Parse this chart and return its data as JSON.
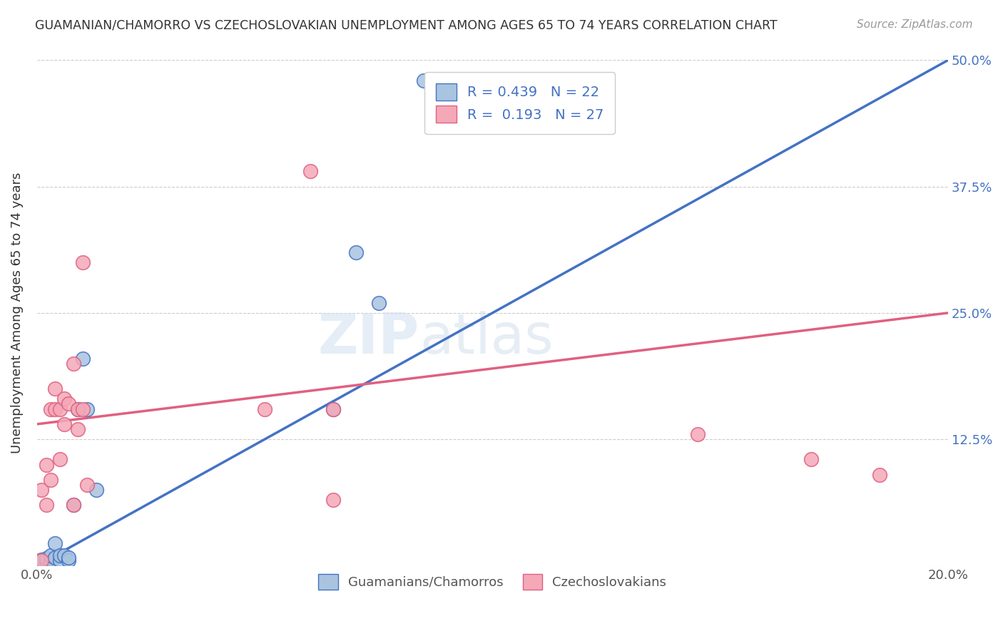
{
  "title": "GUAMANIAN/CHAMORRO VS CZECHOSLOVAKIAN UNEMPLOYMENT AMONG AGES 65 TO 74 YEARS CORRELATION CHART",
  "source": "Source: ZipAtlas.com",
  "ylabel": "Unemployment Among Ages 65 to 74 years",
  "xlim": [
    0.0,
    0.2
  ],
  "ylim": [
    0.0,
    0.5
  ],
  "xticks": [
    0.0,
    0.04,
    0.08,
    0.12,
    0.16,
    0.2
  ],
  "xticklabels": [
    "0.0%",
    "",
    "",
    "",
    "",
    "20.0%"
  ],
  "yticks": [
    0.0,
    0.125,
    0.25,
    0.375,
    0.5
  ],
  "yticklabels": [
    "",
    "12.5%",
    "25.0%",
    "37.5%",
    "50.0%"
  ],
  "blue_R": 0.439,
  "blue_N": 22,
  "pink_R": 0.193,
  "pink_N": 27,
  "blue_label": "Guamanians/Chamorros",
  "pink_label": "Czechoslovakians",
  "blue_color": "#a8c4e0",
  "pink_color": "#f4a8b8",
  "blue_line_color": "#4472c4",
  "pink_line_color": "#e06080",
  "ref_line_color": "#b0b8c8",
  "watermark_zip": "ZIP",
  "watermark_atlas": "atlas",
  "blue_x": [
    0.001,
    0.001,
    0.002,
    0.002,
    0.003,
    0.003,
    0.004,
    0.004,
    0.005,
    0.005,
    0.006,
    0.007,
    0.007,
    0.008,
    0.009,
    0.01,
    0.011,
    0.013,
    0.065,
    0.07,
    0.075,
    0.085
  ],
  "blue_y": [
    0.003,
    0.006,
    0.004,
    0.007,
    0.004,
    0.01,
    0.008,
    0.022,
    0.005,
    0.01,
    0.01,
    0.005,
    0.008,
    0.06,
    0.155,
    0.205,
    0.155,
    0.075,
    0.155,
    0.31,
    0.26,
    0.48
  ],
  "pink_x": [
    0.001,
    0.001,
    0.002,
    0.002,
    0.003,
    0.003,
    0.004,
    0.004,
    0.005,
    0.005,
    0.006,
    0.006,
    0.007,
    0.008,
    0.008,
    0.009,
    0.009,
    0.01,
    0.01,
    0.011,
    0.05,
    0.06,
    0.065,
    0.065,
    0.145,
    0.17,
    0.185
  ],
  "pink_y": [
    0.005,
    0.075,
    0.06,
    0.1,
    0.085,
    0.155,
    0.155,
    0.175,
    0.105,
    0.155,
    0.14,
    0.165,
    0.16,
    0.06,
    0.2,
    0.135,
    0.155,
    0.3,
    0.155,
    0.08,
    0.155,
    0.39,
    0.155,
    0.065,
    0.13,
    0.105,
    0.09
  ],
  "blue_line_x0": 0.0,
  "blue_line_y0": 0.0,
  "blue_line_x1": 0.2,
  "blue_line_y1": 0.5,
  "pink_line_x0": 0.0,
  "pink_line_y0": 0.14,
  "pink_line_x1": 0.2,
  "pink_line_y1": 0.25
}
